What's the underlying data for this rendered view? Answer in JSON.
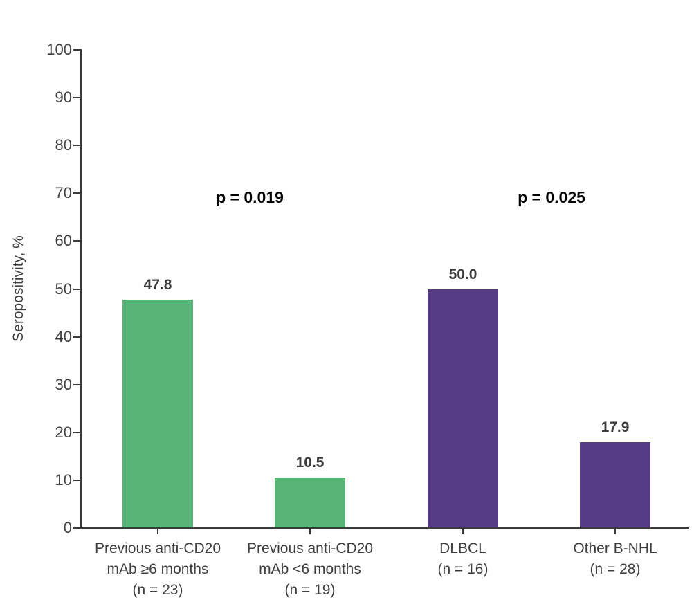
{
  "chart_data": {
    "type": "bar",
    "title": "",
    "xlabel": "",
    "ylabel": "Seropositivity, %",
    "ylim": [
      0,
      100
    ],
    "yticks": [
      0,
      10,
      20,
      30,
      40,
      50,
      60,
      70,
      80,
      90,
      100
    ],
    "grid": false,
    "legend": "none",
    "categories": [
      "Previous anti-CD20\nmAb ≥6 months\n(n = 23)",
      "Previous anti-CD20\nmAb <6 months\n(n = 19)",
      "DLBCL\n(n = 16)",
      "Other B-NHL\n(n = 28)"
    ],
    "values": [
      47.8,
      10.5,
      50.0,
      17.9
    ],
    "value_labels": [
      "47.8",
      "10.5",
      "50.0",
      "17.9"
    ],
    "bar_colors": [
      "#59b478",
      "#59b478",
      "#553a84",
      "#553a84"
    ],
    "annotations": [
      {
        "text": "p = 0.019",
        "between_bars": [
          1,
          2
        ],
        "y_value": 70
      },
      {
        "text": "p = 0.025",
        "between_bars": [
          3,
          4
        ],
        "y_value": 70
      }
    ],
    "colors": {
      "green_bar": "#59b478",
      "purple_bar": "#553a84",
      "axis": "#3a3a3a",
      "tick_text": "#424242",
      "value_label_text": "#3d3d3d",
      "annotation_text": "#000000",
      "background": "#ffffff"
    }
  }
}
